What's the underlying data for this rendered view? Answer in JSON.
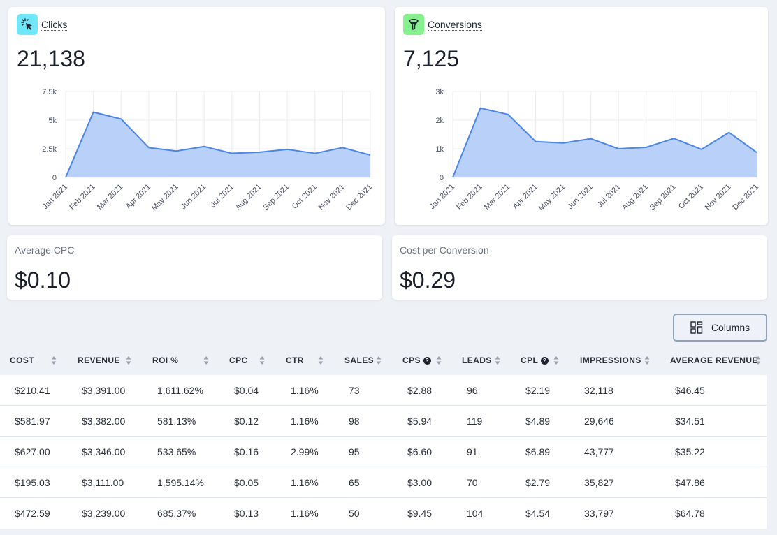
{
  "clicks": {
    "title": "Clicks",
    "value": "21,138",
    "icon": "cursor-click-icon",
    "chart_data": {
      "type": "area",
      "x": [
        "Jan 2021",
        "Feb 2021",
        "Mar 2021",
        "Apr 2021",
        "May 2021",
        "Jun 2021",
        "Jul 2021",
        "Aug 2021",
        "Sep 2021",
        "Oct 2021",
        "Nov 2021",
        "Dec 2021"
      ],
      "values": [
        0,
        5700,
        5100,
        2600,
        2300,
        2700,
        2100,
        2200,
        2450,
        2100,
        2600,
        1950
      ],
      "ylim": [
        0,
        7500
      ],
      "yticks": [
        "0",
        "2.5k",
        "5k",
        "7.5k"
      ],
      "ytick_values": [
        0,
        2500,
        5000,
        7500
      ],
      "color": "#4a86e8",
      "fill": "#b9d1f8",
      "grid": true
    }
  },
  "conversions": {
    "title": "Conversions",
    "value": "7,125",
    "icon": "funnel-icon",
    "chart_data": {
      "type": "area",
      "x": [
        "Jan 2021",
        "Feb 2021",
        "Mar 2021",
        "Apr 2021",
        "May 2021",
        "Jun 2021",
        "Jul 2021",
        "Aug 2021",
        "Sep 2021",
        "Oct 2021",
        "Nov 2021",
        "Dec 2021"
      ],
      "values": [
        0,
        2420,
        2200,
        1250,
        1200,
        1350,
        1000,
        1050,
        1360,
        980,
        1570,
        870
      ],
      "ylim": [
        0,
        3000
      ],
      "yticks": [
        "0",
        "1k",
        "2k",
        "3k"
      ],
      "ytick_values": [
        0,
        1000,
        2000,
        3000
      ],
      "color": "#4a86e8",
      "fill": "#b9d1f8",
      "grid": true
    }
  },
  "avg_cpc": {
    "label": "Average CPC",
    "value": "$0.10"
  },
  "cost_per_conversion": {
    "label": "Cost per Conversion",
    "value": "$0.29"
  },
  "columns_button": {
    "label": "Columns",
    "icon": "grid-layout-icon"
  },
  "table": {
    "headers": [
      "COST",
      "REVENUE",
      "ROI %",
      "CPC",
      "CTR",
      "SALES",
      "CPS",
      "LEADS",
      "CPL",
      "IMPRESSIONS",
      "AVERAGE REVENUE"
    ],
    "rows": [
      [
        "$210.41",
        "$3,391.00",
        "1,611.62%",
        "$0.04",
        "1.16%",
        "73",
        "$2.88",
        "96",
        "$2.19",
        "32,118",
        "$46.45"
      ],
      [
        "$581.97",
        "$3,382.00",
        "581.13%",
        "$0.12",
        "1.16%",
        "98",
        "$5.94",
        "119",
        "$4.89",
        "29,646",
        "$34.51"
      ],
      [
        "$627.00",
        "$3,346.00",
        "533.65%",
        "$0.16",
        "2.99%",
        "95",
        "$6.60",
        "91",
        "$6.89",
        "43,777",
        "$35.22"
      ],
      [
        "$195.03",
        "$3,111.00",
        "1,595.14%",
        "$0.05",
        "1.16%",
        "65",
        "$3.00",
        "70",
        "$2.79",
        "35,827",
        "$47.86"
      ],
      [
        "$472.59",
        "$3,239.00",
        "685.37%",
        "$0.13",
        "1.16%",
        "50",
        "$9.45",
        "104",
        "$4.54",
        "33,797",
        "$64.78"
      ]
    ]
  }
}
